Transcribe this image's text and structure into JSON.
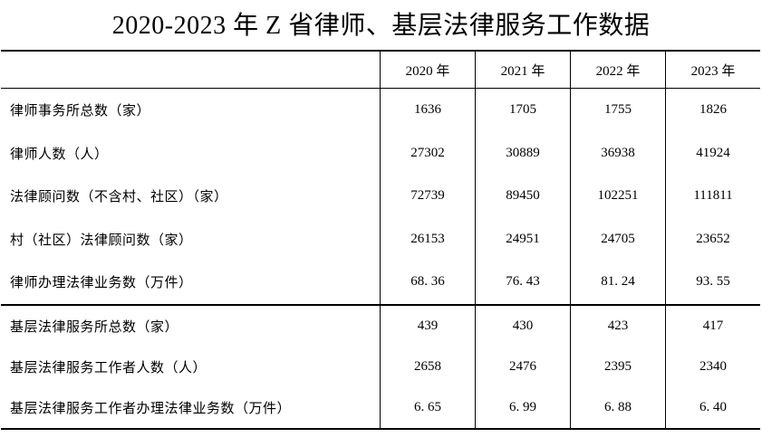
{
  "title": "2020-2023 年 Z 省律师、基层法律服务工作数据",
  "table": {
    "columns": [
      "2020 年",
      "2021 年",
      "2022 年",
      "2023 年"
    ],
    "rows": [
      {
        "label": "律师事务所总数（家）",
        "values": [
          "1636",
          "1705",
          "1755",
          "1826"
        ]
      },
      {
        "label": "律师人数（人）",
        "values": [
          "27302",
          "30889",
          "36938",
          "41924"
        ]
      },
      {
        "label": "法律顾问数（不含村、社区）（家）",
        "values": [
          "72739",
          "89450",
          "102251",
          "111811"
        ]
      },
      {
        "label": "村（社区）法律顾问数（家）",
        "values": [
          "26153",
          "24951",
          "24705",
          "23652"
        ]
      },
      {
        "label": "律师办理法律业务数（万件）",
        "values": [
          "68. 36",
          "76. 43",
          "81. 24",
          "93. 55"
        ]
      },
      {
        "label": "基层法律服务所总数（家）",
        "values": [
          "439",
          "430",
          "423",
          "417"
        ]
      },
      {
        "label": "基层法律服务工作者人数（人）",
        "values": [
          "2658",
          "2476",
          "2395",
          "2340"
        ]
      },
      {
        "label": "基层法律服务工作者办理法律业务数（万件）",
        "values": [
          "6. 65",
          "6. 99",
          "6. 88",
          "6. 40"
        ]
      }
    ]
  },
  "chart_data": {
    "type": "table",
    "title": "2020-2023 年 Z 省律师、基层法律服务工作数据",
    "categories": [
      "2020",
      "2021",
      "2022",
      "2023"
    ],
    "series": [
      {
        "name": "律师事务所总数（家）",
        "values": [
          1636,
          1705,
          1755,
          1826
        ]
      },
      {
        "name": "律师人数（人）",
        "values": [
          27302,
          30889,
          36938,
          41924
        ]
      },
      {
        "name": "法律顾问数（不含村、社区）（家）",
        "values": [
          72739,
          89450,
          102251,
          111811
        ]
      },
      {
        "name": "村（社区）法律顾问数（家）",
        "values": [
          26153,
          24951,
          24705,
          23652
        ]
      },
      {
        "name": "律师办理法律业务数（万件）",
        "values": [
          68.36,
          76.43,
          81.24,
          93.55
        ]
      },
      {
        "name": "基层法律服务所总数（家）",
        "values": [
          439,
          430,
          423,
          417
        ]
      },
      {
        "name": "基层法律服务工作者人数（人）",
        "values": [
          2658,
          2476,
          2395,
          2340
        ]
      },
      {
        "name": "基层法律服务工作者办理法律业务数（万件）",
        "values": [
          6.65,
          6.99,
          6.88,
          6.4
        ]
      }
    ],
    "layout": {
      "grid": "partial-borders",
      "section_break_after_row": 5
    }
  }
}
